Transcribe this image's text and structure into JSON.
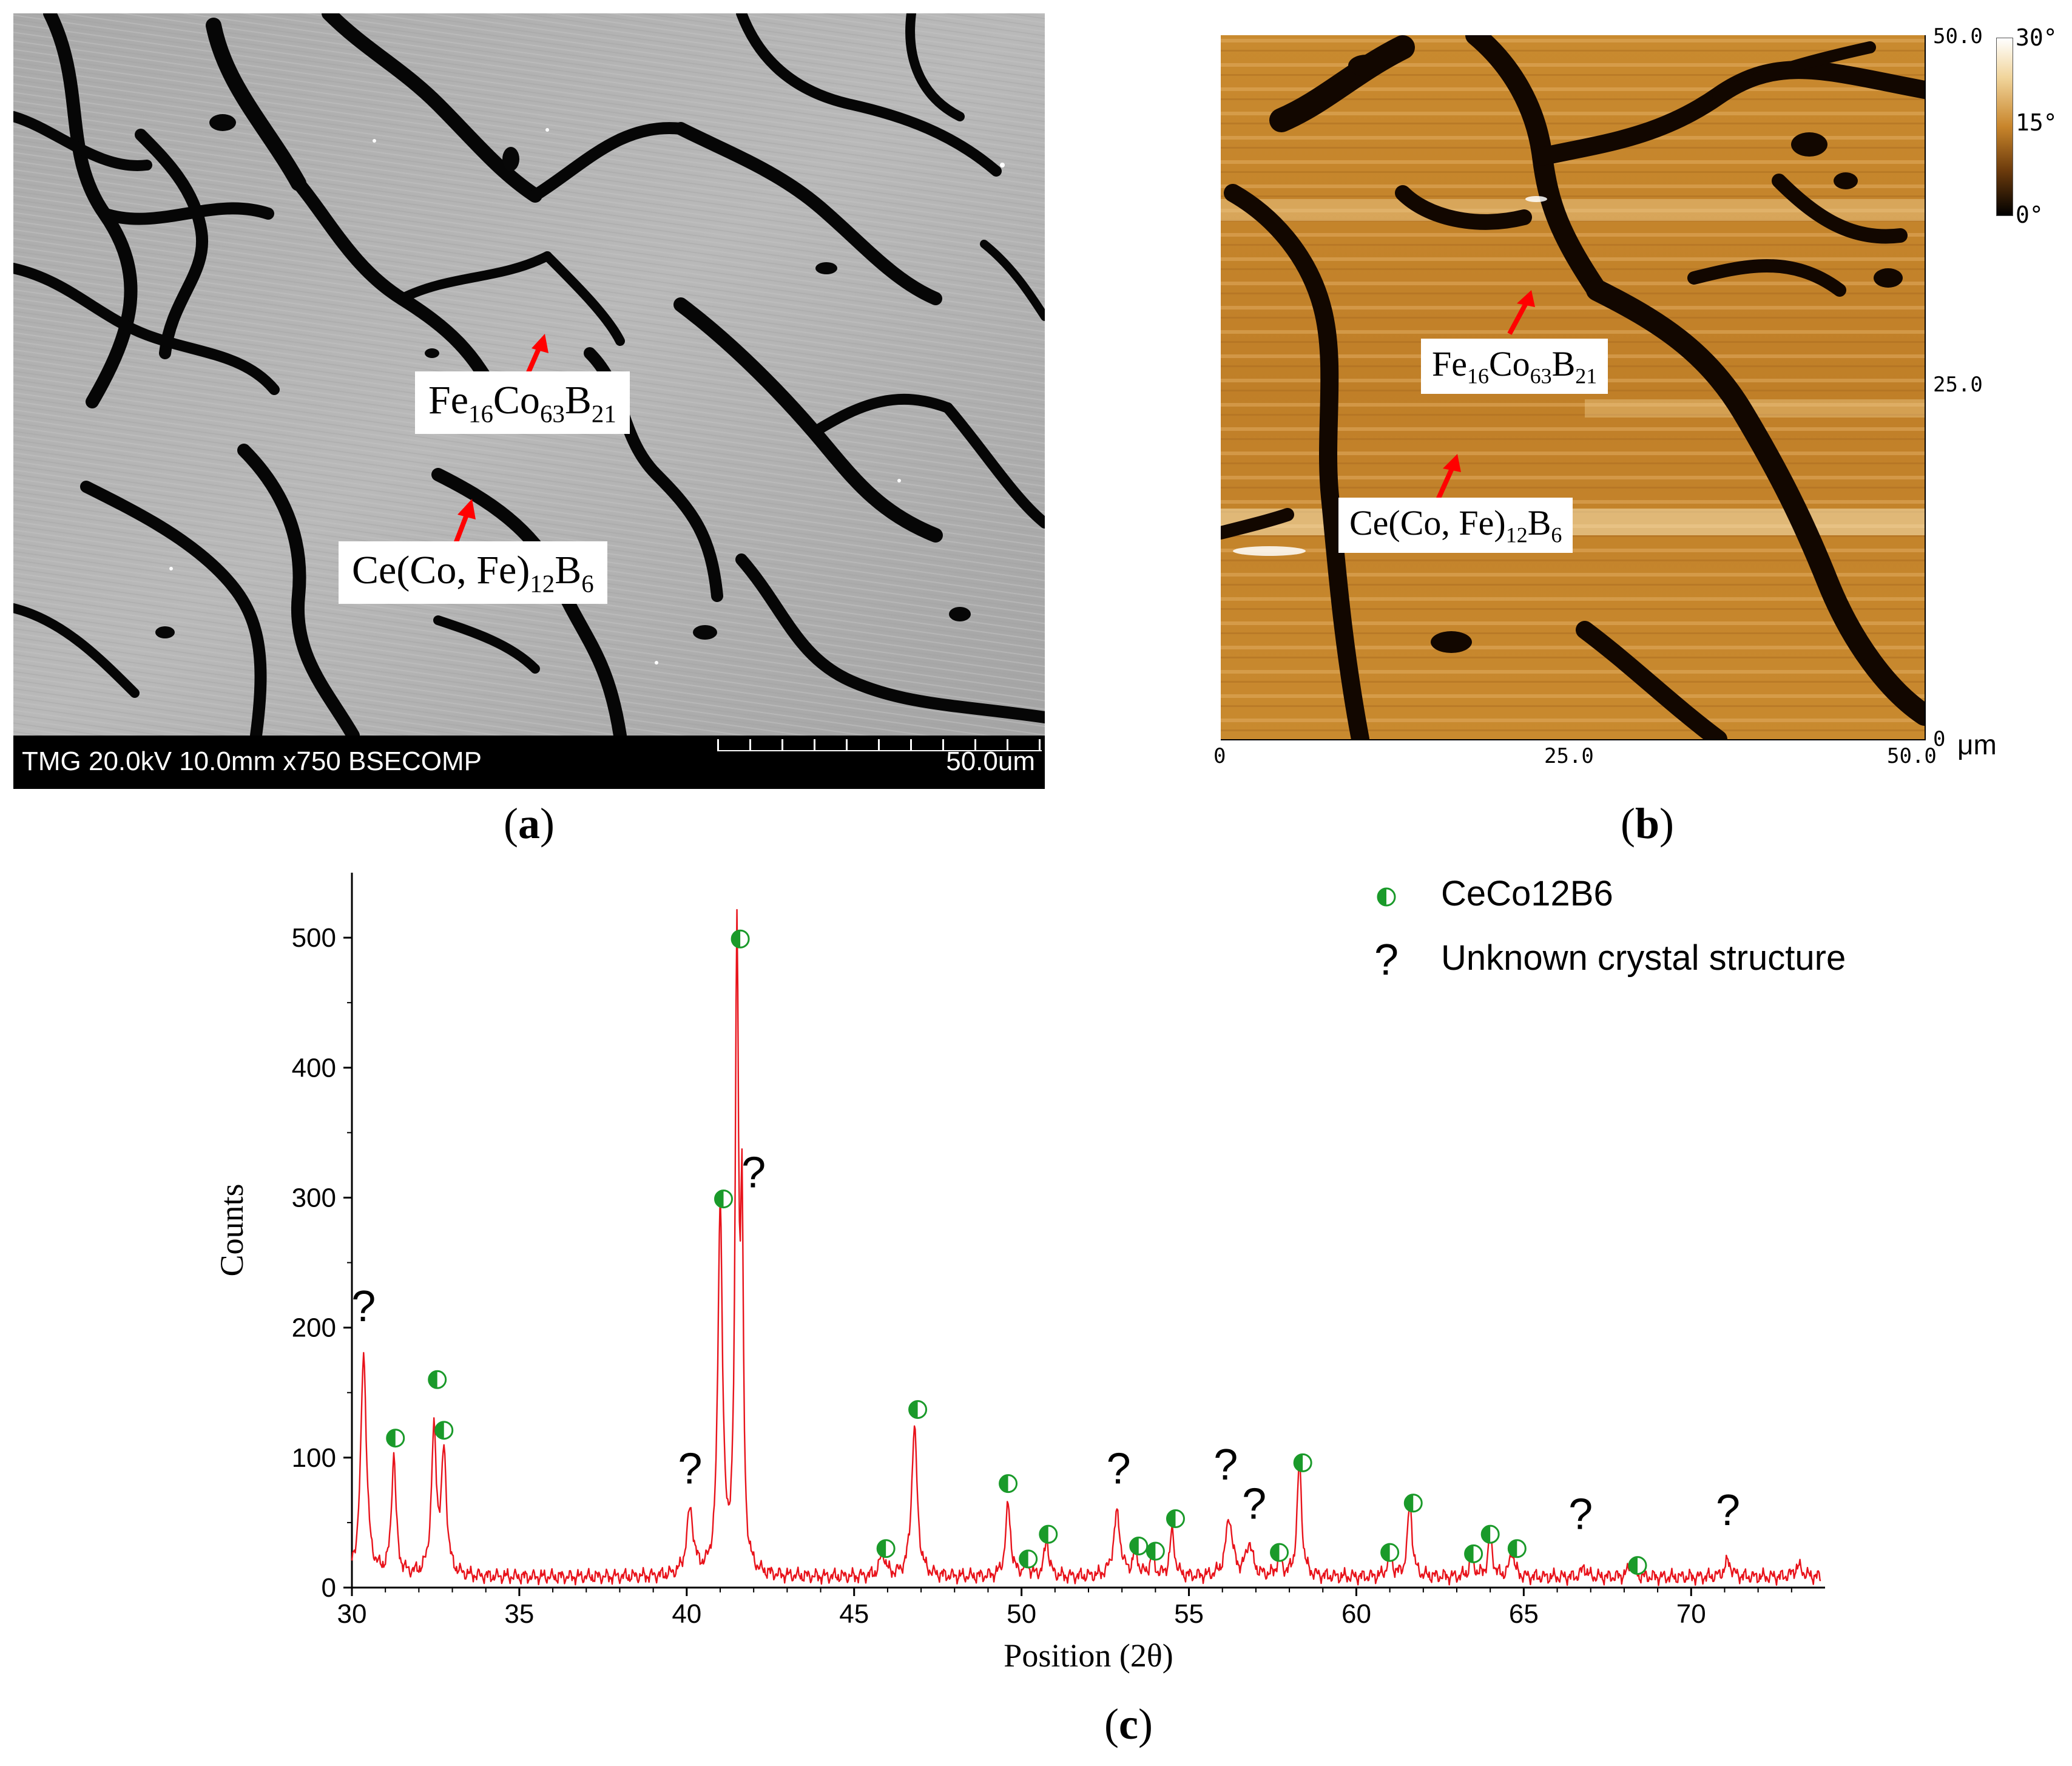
{
  "panel_a": {
    "label": "a",
    "sem_info": "TMG 20.0kV 10.0mm x750 BSECOMP",
    "scale_bar": "50.0um",
    "phase_1": {
      "name": "Fe",
      "sub1": "16",
      "mid": "Co",
      "sub2": "63",
      "tail": "B",
      "sub3": "21"
    },
    "phase_2": {
      "name": "Ce(Co, Fe)",
      "sub1": "12",
      "tail": "B",
      "sub2": "6"
    }
  },
  "panel_b": {
    "label": "b",
    "colorbar_ticks": [
      "30°",
      "15°",
      "0°"
    ],
    "y_ticks": [
      "50.0",
      "25.0",
      "0"
    ],
    "x_ticks": [
      "0",
      "25.0",
      "50.0"
    ],
    "unit": "μm",
    "phase_1": {
      "name": "Fe",
      "sub1": "16",
      "mid": "Co",
      "sub2": "63",
      "tail": "B",
      "sub3": "21"
    },
    "phase_2": {
      "name": "Ce(Co, Fe)",
      "sub1": "12",
      "tail": "B",
      "sub2": "6"
    }
  },
  "panel_c": {
    "label": "c"
  },
  "chart_data": {
    "type": "line",
    "xlabel": "Position (2θ)",
    "ylabel": "Counts",
    "xlim": [
      30,
      74
    ],
    "ylim": [
      0,
      550
    ],
    "x_ticks": [
      30,
      35,
      40,
      45,
      50,
      55,
      60,
      65,
      70
    ],
    "y_ticks": [
      0,
      100,
      200,
      300,
      400,
      500
    ],
    "line_color": "#e8131b",
    "marker_color": "#1a9a2a",
    "legend": [
      {
        "symbol": "half-filled-circle",
        "label": "CeCo12B6"
      },
      {
        "symbol": "?",
        "label": "Unknown crystal structure"
      }
    ],
    "peaks": [
      {
        "x": 30.35,
        "y": 172,
        "w": 0.1
      },
      {
        "x": 31.25,
        "y": 92,
        "w": 0.08
      },
      {
        "x": 32.45,
        "y": 108,
        "w": 0.09
      },
      {
        "x": 32.75,
        "y": 92,
        "w": 0.09
      },
      {
        "x": 40.1,
        "y": 50,
        "w": 0.12
      },
      {
        "x": 41.0,
        "y": 286,
        "w": 0.08
      },
      {
        "x": 41.5,
        "y": 485,
        "w": 0.06
      },
      {
        "x": 41.65,
        "y": 255,
        "w": 0.05
      },
      {
        "x": 45.85,
        "y": 18,
        "w": 0.1
      },
      {
        "x": 46.8,
        "y": 115,
        "w": 0.1
      },
      {
        "x": 49.6,
        "y": 55,
        "w": 0.09
      },
      {
        "x": 50.15,
        "y": 12,
        "w": 0.08
      },
      {
        "x": 50.75,
        "y": 28,
        "w": 0.08
      },
      {
        "x": 52.85,
        "y": 48,
        "w": 0.12
      },
      {
        "x": 53.4,
        "y": 20,
        "w": 0.08
      },
      {
        "x": 53.9,
        "y": 15,
        "w": 0.08
      },
      {
        "x": 54.5,
        "y": 35,
        "w": 0.08
      },
      {
        "x": 56.2,
        "y": 45,
        "w": 0.12
      },
      {
        "x": 56.8,
        "y": 25,
        "w": 0.12
      },
      {
        "x": 57.7,
        "y": 15,
        "w": 0.08
      },
      {
        "x": 58.3,
        "y": 88,
        "w": 0.08
      },
      {
        "x": 61.0,
        "y": 18,
        "w": 0.08
      },
      {
        "x": 61.6,
        "y": 58,
        "w": 0.08
      },
      {
        "x": 63.45,
        "y": 15,
        "w": 0.08
      },
      {
        "x": 64.0,
        "y": 30,
        "w": 0.08
      },
      {
        "x": 64.65,
        "y": 20,
        "w": 0.08
      },
      {
        "x": 66.8,
        "y": 8,
        "w": 0.08
      },
      {
        "x": 68.2,
        "y": 10,
        "w": 0.1
      },
      {
        "x": 71.1,
        "y": 12,
        "w": 0.12
      },
      {
        "x": 73.2,
        "y": 8,
        "w": 0.15
      }
    ],
    "markers": [
      {
        "type": "unknown",
        "x": 30.35,
        "y": 205
      },
      {
        "type": "phase",
        "x": 31.3,
        "y": 115
      },
      {
        "type": "phase",
        "x": 32.55,
        "y": 160
      },
      {
        "type": "phase",
        "x": 32.75,
        "y": 121
      },
      {
        "type": "unknown",
        "x": 40.1,
        "y": 80
      },
      {
        "type": "phase",
        "x": 41.1,
        "y": 299
      },
      {
        "type": "phase",
        "x": 41.6,
        "y": 499
      },
      {
        "type": "unknown",
        "x": 42.0,
        "y": 308
      },
      {
        "type": "phase",
        "x": 45.95,
        "y": 30
      },
      {
        "type": "phase",
        "x": 46.9,
        "y": 137
      },
      {
        "type": "phase",
        "x": 49.6,
        "y": 80
      },
      {
        "type": "phase",
        "x": 50.2,
        "y": 22
      },
      {
        "type": "phase",
        "x": 50.8,
        "y": 41
      },
      {
        "type": "unknown",
        "x": 52.9,
        "y": 80
      },
      {
        "type": "phase",
        "x": 53.5,
        "y": 32
      },
      {
        "type": "phase",
        "x": 54.0,
        "y": 28
      },
      {
        "type": "phase",
        "x": 54.6,
        "y": 53
      },
      {
        "type": "unknown",
        "x": 56.1,
        "y": 83
      },
      {
        "type": "unknown",
        "x": 56.95,
        "y": 53
      },
      {
        "type": "phase",
        "x": 57.7,
        "y": 27
      },
      {
        "type": "phase",
        "x": 58.4,
        "y": 96
      },
      {
        "type": "phase",
        "x": 61.0,
        "y": 27
      },
      {
        "type": "phase",
        "x": 61.7,
        "y": 65
      },
      {
        "type": "phase",
        "x": 63.5,
        "y": 26
      },
      {
        "type": "phase",
        "x": 64.0,
        "y": 41
      },
      {
        "type": "phase",
        "x": 64.8,
        "y": 30
      },
      {
        "type": "unknown",
        "x": 66.7,
        "y": 45
      },
      {
        "type": "phase",
        "x": 68.4,
        "y": 17
      },
      {
        "type": "unknown",
        "x": 71.1,
        "y": 48
      }
    ]
  }
}
